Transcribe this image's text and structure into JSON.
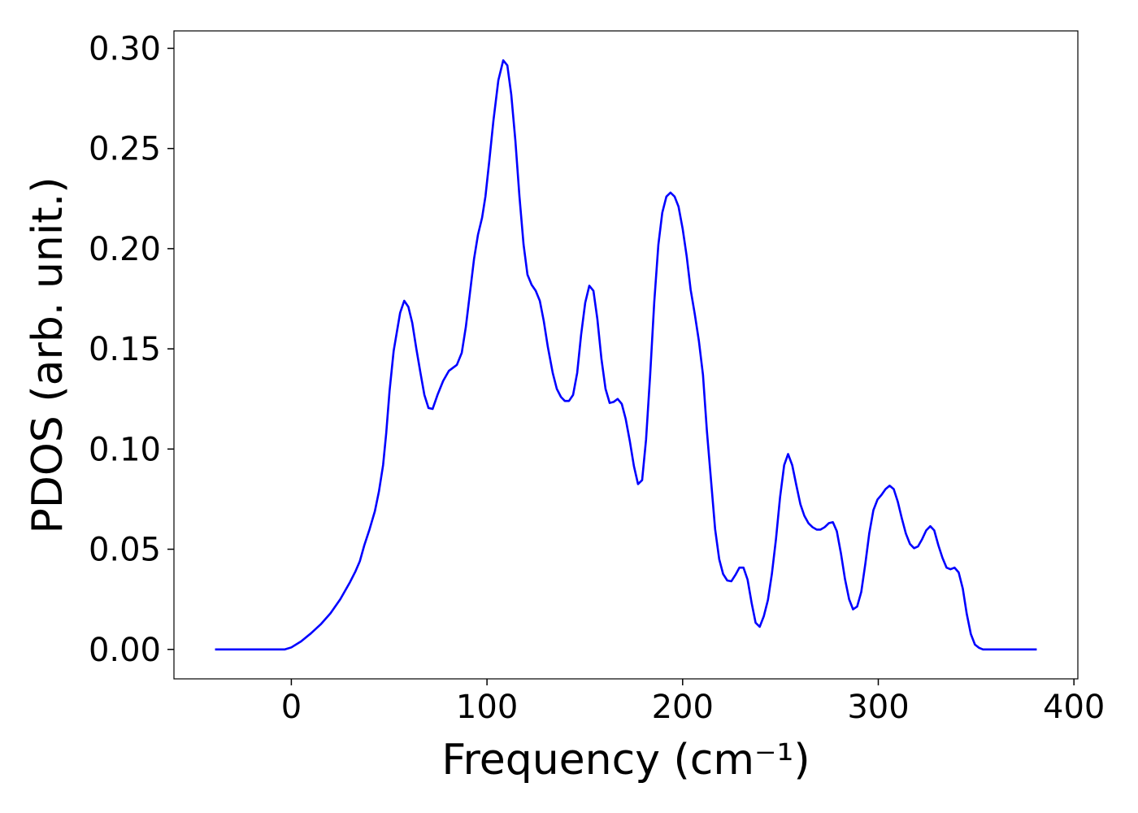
{
  "chart_data": {
    "type": "line",
    "xlabel": "Frequency (cm⁻¹)",
    "ylabel": "PDOS (arb. unit.)",
    "color": "#0000ff",
    "xlim": [
      -60,
      402
    ],
    "ylim": [
      -0.0147,
      0.3087
    ],
    "xticks": [
      0,
      100,
      200,
      300,
      400
    ],
    "yticks": [
      {
        "value": 0,
        "label": "0.00"
      },
      {
        "value": 0.05,
        "label": "0.05"
      },
      {
        "value": 0.1,
        "label": "0.10"
      },
      {
        "value": 0.15,
        "label": "0.15"
      },
      {
        "value": 0.2,
        "label": "0.20"
      },
      {
        "value": 0.25,
        "label": "0.25"
      },
      {
        "value": 0.3,
        "label": "0.30"
      }
    ],
    "x": [
      -39,
      -3.3,
      0,
      5,
      10,
      15,
      20,
      25,
      30,
      32.8,
      35,
      37.3,
      40,
      42.7,
      44.8,
      46.9,
      48.5,
      50.2,
      52.3,
      55.6,
      57.7,
      59.8,
      61.8,
      63.9,
      66,
      68,
      70.1,
      72.2,
      74.7,
      77.6,
      80.5,
      84.6,
      87.1,
      89.2,
      91.3,
      93.4,
      95.4,
      97.5,
      99.2,
      101.2,
      103.3,
      105.8,
      108.3,
      110.4,
      112.4,
      114.5,
      116.6,
      118.7,
      120.7,
      122.8,
      124.9,
      127,
      129,
      131.1,
      133.6,
      135.7,
      137.8,
      139.8,
      141.9,
      144,
      146.1,
      148.1,
      150.2,
      152.3,
      154.4,
      156.4,
      158.5,
      160.6,
      162.7,
      164.7,
      166.8,
      168.9,
      170.9,
      173,
      175.1,
      177.2,
      179.3,
      181.3,
      183.4,
      185.5,
      187.6,
      189.6,
      191.7,
      193.8,
      195.9,
      197.9,
      200,
      202.1,
      204.1,
      206.2,
      208.3,
      210.4,
      212.4,
      214.5,
      216.6,
      218.7,
      220.7,
      222.8,
      224.9,
      227,
      229,
      231.1,
      233.2,
      235.3,
      237.3,
      239.4,
      241.5,
      243.6,
      245.6,
      247.7,
      249.8,
      251.9,
      253.9,
      256,
      258.1,
      260.2,
      262.2,
      264.3,
      266.4,
      268.5,
      270.5,
      272.6,
      274.7,
      276.8,
      278.8,
      280.9,
      283,
      285.1,
      287.1,
      289.2,
      291.3,
      293.4,
      295.4,
      297.5,
      299.6,
      301.7,
      303.7,
      305.8,
      307.9,
      310,
      312,
      314.1,
      316.2,
      318.3,
      320.3,
      322.4,
      324.5,
      326.6,
      328.6,
      330.7,
      332.8,
      334.9,
      336.9,
      339,
      341.1,
      343.2,
      345.2,
      347.3,
      349.4,
      351.5,
      353.5,
      381
    ],
    "values": [
      0,
      0,
      0.001,
      0.004,
      0.008,
      0.0125,
      0.018,
      0.025,
      0.0336,
      0.039,
      0.044,
      0.052,
      0.06,
      0.069,
      0.079,
      0.092,
      0.108,
      0.129,
      0.149,
      0.168,
      0.174,
      0.171,
      0.163,
      0.15,
      0.138,
      0.127,
      0.1205,
      0.12,
      0.127,
      0.134,
      0.139,
      0.142,
      0.148,
      0.161,
      0.178,
      0.195,
      0.207,
      0.2155,
      0.226,
      0.244,
      0.264,
      0.284,
      0.294,
      0.2915,
      0.277,
      0.254,
      0.226,
      0.202,
      0.187,
      0.182,
      0.179,
      0.174,
      0.164,
      0.151,
      0.138,
      0.13,
      0.126,
      0.124,
      0.124,
      0.127,
      0.138,
      0.157,
      0.173,
      0.1815,
      0.179,
      0.165,
      0.145,
      0.13,
      0.123,
      0.1235,
      0.125,
      0.1225,
      0.115,
      0.104,
      0.0915,
      0.0825,
      0.0845,
      0.1047,
      0.137,
      0.1735,
      0.202,
      0.218,
      0.226,
      0.228,
      0.226,
      0.221,
      0.21,
      0.196,
      0.1795,
      0.1674,
      0.154,
      0.137,
      0.109,
      0.0845,
      0.06,
      0.045,
      0.0376,
      0.0344,
      0.034,
      0.0372,
      0.0408,
      0.0408,
      0.0348,
      0.023,
      0.0133,
      0.0113,
      0.0166,
      0.0247,
      0.0376,
      0.055,
      0.076,
      0.092,
      0.0975,
      0.092,
      0.082,
      0.0724,
      0.0667,
      0.063,
      0.061,
      0.0598,
      0.0598,
      0.061,
      0.063,
      0.0635,
      0.059,
      0.048,
      0.035,
      0.025,
      0.02,
      0.0214,
      0.0287,
      0.0429,
      0.058,
      0.0695,
      0.0748,
      0.0772,
      0.08,
      0.0817,
      0.08,
      0.0736,
      0.0655,
      0.0578,
      0.0526,
      0.0505,
      0.0514,
      0.055,
      0.0594,
      0.0615,
      0.0594,
      0.052,
      0.0457,
      0.0408,
      0.04,
      0.0408,
      0.0384,
      0.0303,
      0.0178,
      0.0077,
      0.0024,
      0.0008,
      0,
      0
    ]
  }
}
